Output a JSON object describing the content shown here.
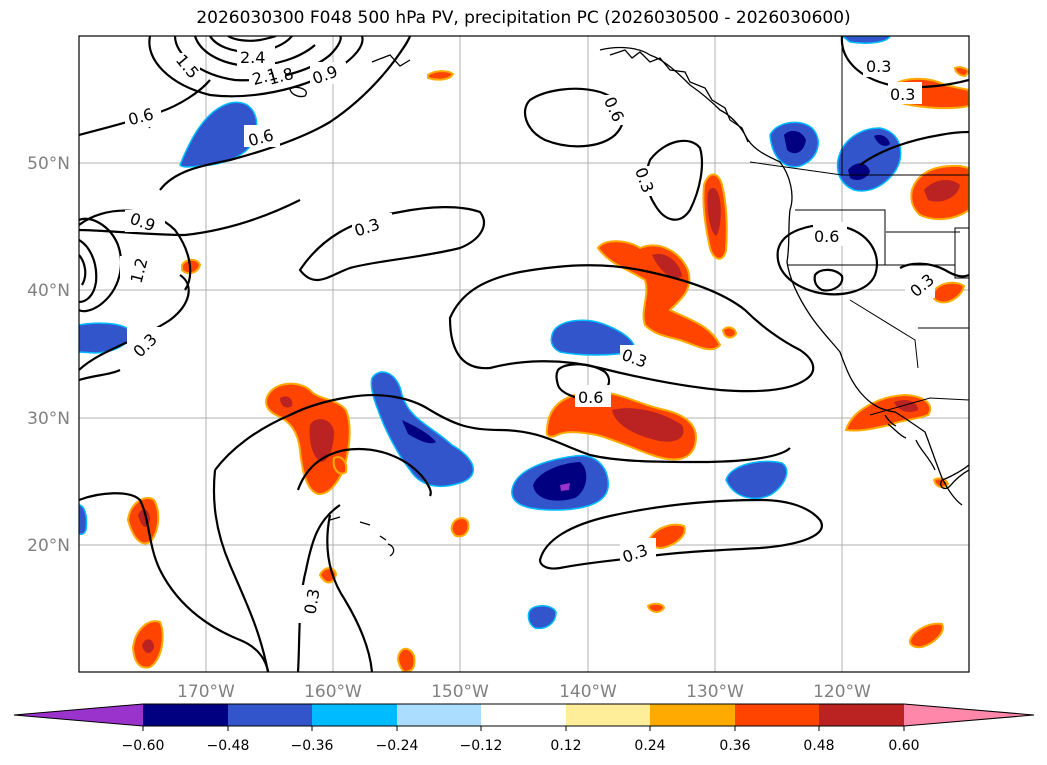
{
  "title": "2026030300 F048 500 hPa PV, precipitation PC (2026030500 - 2026030600)",
  "map": {
    "lon_labels": [
      "170°W",
      "160°W",
      "150°W",
      "140°W",
      "130°W",
      "120°W"
    ],
    "lat_labels": [
      "50°N",
      "40°N",
      "30°N",
      "20°N"
    ],
    "contour_labels": [
      "2.4",
      "2.1",
      "1.8",
      "1.5",
      "1.2",
      "0.9",
      "0.9",
      "0.6",
      "0.6",
      "0.6",
      "0.6",
      "0.6",
      "0.3",
      "0.3",
      "0.3",
      "0.3",
      "0.3",
      "0.3",
      "0.3",
      "0.3",
      "0.3"
    ]
  },
  "colorbar": {
    "ticks": [
      "−0.60",
      "−0.48",
      "−0.36",
      "−0.24",
      "−0.12",
      "0.12",
      "0.24",
      "0.36",
      "0.48",
      "0.60"
    ],
    "colors": [
      "#9933cc",
      "#000080",
      "#3355cc",
      "#00bbff",
      "#aaddff",
      "#ffffff",
      "#ffee99",
      "#ffaa00",
      "#ff4400",
      "#bb2222",
      "#ff88aa"
    ]
  }
}
